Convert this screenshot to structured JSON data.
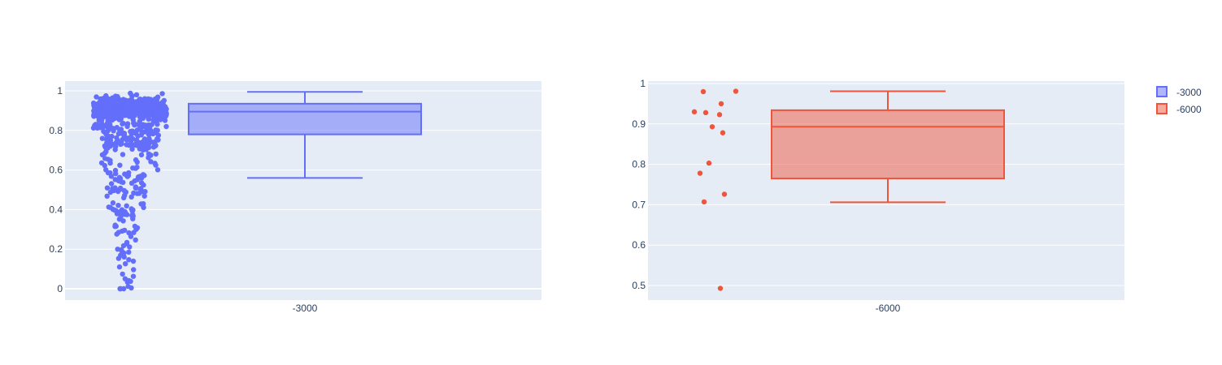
{
  "chart_data": [
    {
      "type": "box",
      "category": "-3000",
      "color": "#636efa",
      "fill": "rgba(99,110,250,0.5)",
      "ylim": [
        -0.05,
        1.05
      ],
      "yticks": [
        {
          "value": 0,
          "label": "0"
        },
        {
          "value": 0.2,
          "label": "0.2"
        },
        {
          "value": 0.4,
          "label": "0.4"
        },
        {
          "value": 0.6,
          "label": "0.6"
        },
        {
          "value": 0.8,
          "label": "0.8"
        },
        {
          "value": 1,
          "label": "1"
        }
      ],
      "stats": {
        "min": 0.56,
        "q1": 0.78,
        "median": 0.895,
        "q3": 0.935,
        "max": 0.995
      },
      "grid": true,
      "points_shown": "all, jittered beside the box"
    },
    {
      "type": "box",
      "category": "-6000",
      "color": "#ef553b",
      "fill": "rgba(239,85,59,0.5)",
      "ylim": [
        0.465,
        1.0
      ],
      "yticks": [
        {
          "value": 0.5,
          "label": "0.5"
        },
        {
          "value": 0.6,
          "label": "0.6"
        },
        {
          "value": 0.7,
          "label": "0.7"
        },
        {
          "value": 0.8,
          "label": "0.8"
        },
        {
          "value": 0.9,
          "label": "0.9"
        },
        {
          "value": 1,
          "label": "1"
        }
      ],
      "stats": {
        "min": 0.706,
        "q1": 0.765,
        "median": 0.893,
        "q3": 0.934,
        "max": 0.981
      },
      "points": [
        0.981,
        0.98,
        0.95,
        0.93,
        0.928,
        0.923,
        0.893,
        0.878,
        0.803,
        0.778,
        0.726,
        0.707,
        0.493
      ],
      "grid": true
    }
  ],
  "legend": {
    "placement": "top-right",
    "items": [
      {
        "label": "-3000",
        "color": "#636efa"
      },
      {
        "label": "-6000",
        "color": "#ef553b"
      }
    ]
  }
}
